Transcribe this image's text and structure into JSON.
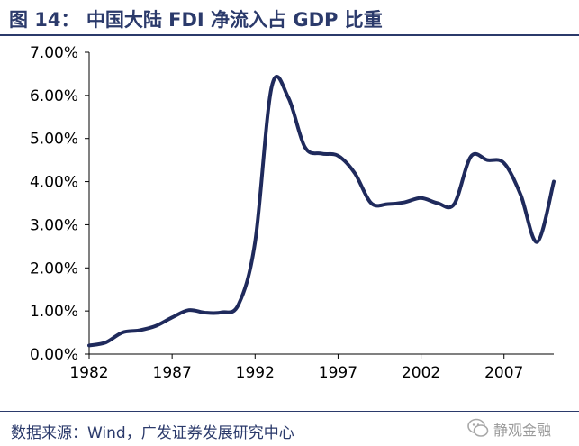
{
  "title": "图 14： 中国大陆 FDI 净流入占 GDP 比重",
  "source": "数据来源：Wind，广发证券发展研究中心",
  "watermark": "静观金融",
  "chart_data": {
    "type": "line",
    "title": "",
    "xlabel": "",
    "ylabel": "",
    "x": [
      1982,
      1983,
      1984,
      1985,
      1986,
      1987,
      1988,
      1989,
      1990,
      1991,
      1992,
      1993,
      1994,
      1995,
      1996,
      1997,
      1998,
      1999,
      2000,
      2001,
      2002,
      2003,
      2004,
      2005,
      2006,
      2007,
      2008,
      2009,
      2010
    ],
    "series": [
      {
        "color": "#1f2a5c",
        "values": [
          0.2,
          0.27,
          0.5,
          0.55,
          0.65,
          0.85,
          1.02,
          0.96,
          0.97,
          1.15,
          2.6,
          6.2,
          5.95,
          4.8,
          4.65,
          4.6,
          4.2,
          3.5,
          3.48,
          3.52,
          3.62,
          3.5,
          3.48,
          4.58,
          4.5,
          4.43,
          3.7,
          2.6,
          4.0
        ]
      }
    ],
    "xticks": [
      "1982",
      "1987",
      "1992",
      "1997",
      "2002",
      "2007"
    ],
    "yticks": [
      "0.00%",
      "1.00%",
      "2.00%",
      "3.00%",
      "4.00%",
      "5.00%",
      "6.00%",
      "7.00%"
    ],
    "xlim": [
      1982,
      2010
    ],
    "ylim": [
      0,
      7
    ],
    "grid": false,
    "legend": "none"
  }
}
